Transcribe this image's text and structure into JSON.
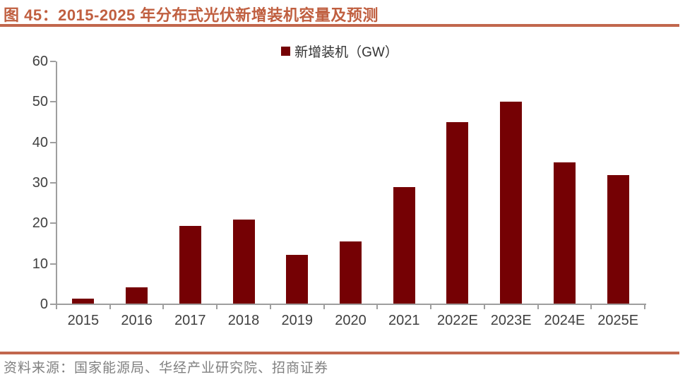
{
  "title": "图 45：2015-2025 年分布式光伏新增装机容量及预测",
  "legend": {
    "label": "新增装机（GW）"
  },
  "source": "资料来源：国家能源局、华经产业研究院、招商证券",
  "colors": {
    "bar": "#750104",
    "title": "#c05f40",
    "rule": "#c1674d",
    "axis": "#9e9e9e",
    "axis_label": "#404040",
    "legend_label": "#333333",
    "source_text": "#808080"
  },
  "chart_data": {
    "type": "bar",
    "title": "图 45：2015-2025 年分布式光伏新增装机容量及预测",
    "legend_entries": [
      "新增装机（GW）"
    ],
    "legend_position": "top-center",
    "categories": [
      "2015",
      "2016",
      "2017",
      "2018",
      "2019",
      "2020",
      "2021",
      "2022E",
      "2023E",
      "2024E",
      "2025E"
    ],
    "values": [
      1.4,
      4.2,
      19.4,
      21.0,
      12.2,
      15.5,
      29.0,
      45.0,
      50.0,
      35.0,
      32.0
    ],
    "xlabel": "",
    "ylabel": "",
    "ylim": [
      0,
      60
    ],
    "yticks": [
      0,
      10,
      20,
      30,
      40,
      50,
      60
    ],
    "grid": false
  }
}
